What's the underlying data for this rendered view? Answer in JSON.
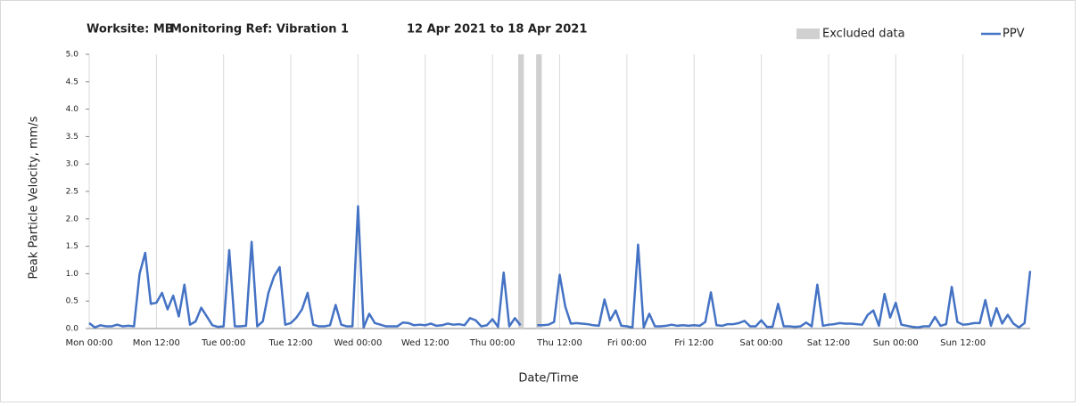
{
  "chart_data": {
    "type": "line",
    "title_parts": [
      "Worksite: MB",
      "Monitoring Ref: Vibration 1",
      "12 Apr 2021 to 18 Apr 2021"
    ],
    "xlabel": "Date/Time",
    "ylabel": "Peak Particle Velocity, mm/s",
    "xlim": [
      0,
      168
    ],
    "ylim": [
      0,
      5
    ],
    "xticks": [
      {
        "value": 0,
        "label": "Mon 00:00"
      },
      {
        "value": 12,
        "label": "Mon 12:00"
      },
      {
        "value": 24,
        "label": "Tue 00:00"
      },
      {
        "value": 36,
        "label": "Tue 12:00"
      },
      {
        "value": 48,
        "label": "Wed 00:00"
      },
      {
        "value": 60,
        "label": "Wed 12:00"
      },
      {
        "value": 72,
        "label": "Thu 00:00"
      },
      {
        "value": 84,
        "label": "Thu 12:00"
      },
      {
        "value": 96,
        "label": "Fri 00:00"
      },
      {
        "value": 108,
        "label": "Fri 12:00"
      },
      {
        "value": 120,
        "label": "Sat 00:00"
      },
      {
        "value": 132,
        "label": "Sat 12:00"
      },
      {
        "value": 144,
        "label": "Sun 00:00"
      },
      {
        "value": 156,
        "label": "Sun 12:00"
      }
    ],
    "yticks": [
      {
        "value": 0,
        "label": "0.0"
      },
      {
        "value": 0.5,
        "label": "0.5"
      },
      {
        "value": 1,
        "label": "1.0"
      },
      {
        "value": 1.5,
        "label": "1.5"
      },
      {
        "value": 2,
        "label": "2.0"
      },
      {
        "value": 2.5,
        "label": "2.5"
      },
      {
        "value": 3,
        "label": "3.0"
      },
      {
        "value": 3.5,
        "label": "3.5"
      },
      {
        "value": 4,
        "label": "4.0"
      },
      {
        "value": 4.5,
        "label": "4.5"
      },
      {
        "value": 5,
        "label": "5.0"
      }
    ],
    "grid": "x",
    "excluded": {
      "name": "Excluded data",
      "color": "#d0d0d0",
      "ranges": [
        [
          76.6,
          77.6
        ],
        [
          79.8,
          80.8
        ]
      ]
    },
    "x": [
      0,
      1,
      2,
      3,
      4,
      5,
      6,
      7,
      8,
      9,
      10,
      11,
      12,
      13,
      14,
      15,
      16,
      17,
      18,
      19,
      20,
      21,
      22,
      23,
      24,
      25,
      26,
      27,
      28,
      29,
      30,
      31,
      32,
      33,
      34,
      35,
      36,
      37,
      38,
      39,
      40,
      41,
      42,
      43,
      44,
      45,
      46,
      47,
      48,
      49,
      50,
      51,
      52,
      53,
      54,
      55,
      56,
      57,
      58,
      59,
      60,
      61,
      62,
      63,
      64,
      65,
      66,
      67,
      68,
      69,
      70,
      71,
      72,
      73,
      74,
      75,
      76,
      77,
      78,
      79,
      80,
      81,
      82,
      83,
      84,
      85,
      86,
      87,
      88,
      89,
      90,
      91,
      92,
      93,
      94,
      95,
      96,
      97,
      98,
      99,
      100,
      101,
      102,
      103,
      104,
      105,
      106,
      107,
      108,
      109,
      110,
      111,
      112,
      113,
      114,
      115,
      116,
      117,
      118,
      119,
      120,
      121,
      122,
      123,
      124,
      125,
      126,
      127,
      128,
      129,
      130,
      131,
      132,
      133,
      134,
      135,
      136,
      137,
      138,
      139,
      140,
      141,
      142,
      143,
      144,
      145,
      146,
      147,
      148,
      149,
      150,
      151,
      152,
      153,
      154,
      155,
      156,
      157,
      158,
      159,
      160,
      161,
      162,
      163,
      164,
      165,
      166,
      167,
      168
    ],
    "series": [
      {
        "name": "PPV",
        "color": "#4472c4",
        "values": [
          0.1,
          0.02,
          0.06,
          0.04,
          0.04,
          0.07,
          0.04,
          0.05,
          0.04,
          1.0,
          1.38,
          0.45,
          0.47,
          0.65,
          0.35,
          0.6,
          0.22,
          0.8,
          0.07,
          0.13,
          0.38,
          0.22,
          0.06,
          0.03,
          0.04,
          1.43,
          0.04,
          0.04,
          0.05,
          1.58,
          0.04,
          0.13,
          0.65,
          0.95,
          1.12,
          0.07,
          0.1,
          0.2,
          0.35,
          0.65,
          0.07,
          0.04,
          0.04,
          0.06,
          0.43,
          0.07,
          0.04,
          0.04,
          2.23,
          0.02,
          0.27,
          0.1,
          0.07,
          0.04,
          0.04,
          0.04,
          0.11,
          0.1,
          0.06,
          0.07,
          0.06,
          0.09,
          0.05,
          0.06,
          0.09,
          0.07,
          0.08,
          0.06,
          0.19,
          0.15,
          0.04,
          0.06,
          0.17,
          0.03,
          1.02,
          0.04,
          0.19,
          0.06,
          null,
          null,
          0.06,
          0.06,
          0.07,
          0.12,
          0.98,
          0.4,
          0.09,
          0.1,
          0.09,
          0.08,
          0.06,
          0.05,
          0.53,
          0.15,
          0.33,
          0.05,
          0.04,
          0.02,
          1.53,
          0.02,
          0.27,
          0.04,
          0.04,
          0.05,
          0.07,
          0.05,
          0.06,
          0.05,
          0.06,
          0.05,
          0.12,
          0.66,
          0.06,
          0.05,
          0.08,
          0.08,
          0.1,
          0.14,
          0.04,
          0.04,
          0.15,
          0.03,
          0.03,
          0.45,
          0.04,
          0.04,
          0.03,
          0.04,
          0.11,
          0.04,
          0.8,
          0.05,
          0.07,
          0.08,
          0.1,
          0.09,
          0.09,
          0.08,
          0.07,
          0.25,
          0.33,
          0.05,
          0.63,
          0.2,
          0.47,
          0.07,
          0.05,
          0.03,
          0.02,
          0.04,
          0.04,
          0.21,
          0.05,
          0.08,
          0.76,
          0.12,
          0.07,
          0.08,
          0.1,
          0.1,
          0.52,
          0.05,
          0.37,
          0.09,
          0.25,
          0.09,
          0.02,
          0.1,
          1.05
        ]
      }
    ]
  }
}
